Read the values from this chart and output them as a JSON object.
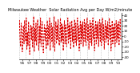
{
  "title": "Milwaukee Weather  Solar Radiation Avg per Day W/m2/minute",
  "ylim": [
    -45,
    45
  ],
  "line_color": "#dd0000",
  "background_color": "#ffffff",
  "grid_color": "#999999",
  "values": [
    10,
    30,
    -8,
    -20,
    25,
    15,
    -30,
    -5,
    20,
    -15,
    30,
    5,
    -10,
    35,
    -25,
    8,
    -18,
    28,
    -5,
    -35,
    12,
    22,
    -8,
    18,
    -22,
    5,
    38,
    -30,
    15,
    -10,
    25,
    -18,
    10,
    32,
    -5,
    -28,
    20,
    -12,
    35,
    -20,
    8,
    28,
    -15,
    -32,
    5,
    22,
    -8,
    15,
    -25,
    10,
    30,
    -18,
    20,
    -5,
    35,
    -28,
    8,
    25,
    -10,
    18,
    -22,
    5,
    38,
    -30,
    12,
    28,
    -15,
    22,
    -8,
    32,
    -5,
    -18,
    10,
    35,
    -12,
    25,
    -8,
    20,
    -28,
    8,
    30,
    -15,
    22,
    5,
    -20,
    10,
    35,
    -15,
    22,
    -5,
    28,
    -25,
    8,
    30,
    -10,
    18,
    -22,
    5,
    32,
    -12,
    25,
    -18,
    15,
    35,
    -8,
    20,
    -28,
    10,
    30,
    -15,
    22,
    -5,
    28,
    -20,
    8,
    32,
    -10,
    25,
    -18,
    15,
    35,
    -8,
    22,
    -25,
    10,
    30,
    -12,
    25,
    -18,
    12,
    35,
    -5,
    20,
    -28,
    8,
    30,
    -15,
    22,
    -5,
    28,
    -20,
    8,
    32,
    -10,
    25,
    -18,
    15,
    35,
    -8,
    22,
    -25,
    10,
    30,
    -12,
    20,
    -5,
    28,
    -18,
    12,
    35,
    -8,
    22,
    -28,
    10,
    30,
    -15,
    18,
    -5,
    25,
    -20,
    8,
    30,
    -12,
    22,
    -5,
    28,
    -18,
    10,
    32,
    -8
  ],
  "xlabel_years": [
    "'96",
    "'97",
    "'98",
    "'99",
    "'00",
    "'01",
    "'02",
    "'03",
    "'04",
    "'05",
    "'06",
    "'07",
    "'08",
    "'09",
    "'10"
  ],
  "ytick_vals": [
    40,
    30,
    20,
    10,
    0,
    -10,
    -20,
    -30,
    -40
  ],
  "linewidth": 0.7,
  "title_fontsize": 3.5,
  "tick_fontsize": 3.0
}
